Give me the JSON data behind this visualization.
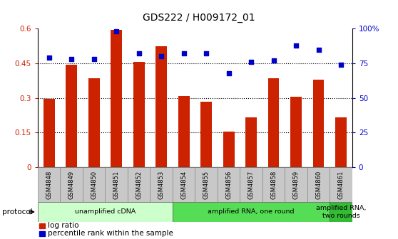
{
  "title": "GDS222 / H009172_01",
  "categories": [
    "GSM4848",
    "GSM4849",
    "GSM4850",
    "GSM4851",
    "GSM4852",
    "GSM4853",
    "GSM4854",
    "GSM4855",
    "GSM4856",
    "GSM4857",
    "GSM4858",
    "GSM4859",
    "GSM4860",
    "GSM4861"
  ],
  "log_ratio": [
    0.295,
    0.445,
    0.385,
    0.595,
    0.455,
    0.525,
    0.31,
    0.285,
    0.155,
    0.215,
    0.385,
    0.305,
    0.38,
    0.215
  ],
  "percentile": [
    79,
    78,
    78,
    98,
    82,
    80,
    82,
    82,
    68,
    76,
    77,
    88,
    85,
    74
  ],
  "bar_color": "#cc2200",
  "dot_color": "#0000cc",
  "bg_xlabel": "#c8c8c8",
  "protocol_groups": [
    {
      "label": "unamplified cDNA",
      "start": 0,
      "end": 5,
      "color": "#ccffcc"
    },
    {
      "label": "amplified RNA, one round",
      "start": 6,
      "end": 12,
      "color": "#55dd55"
    },
    {
      "label": "amplified RNA,\ntwo rounds",
      "start": 13,
      "end": 13,
      "color": "#33bb33"
    }
  ],
  "ylim_left": [
    0,
    0.6
  ],
  "ylim_right": [
    0,
    100
  ],
  "yticks_left": [
    0,
    0.15,
    0.3,
    0.45,
    0.6
  ],
  "ytick_labels_left": [
    "0",
    "0.15",
    "0.3",
    "0.45",
    "0.6"
  ],
  "yticks_right": [
    0,
    25,
    50,
    75,
    100
  ],
  "ytick_labels_right": [
    "0",
    "25",
    "50",
    "75",
    "100%"
  ],
  "legend_log_ratio": "log ratio",
  "legend_percentile": "percentile rank within the sample",
  "protocol_label": "protocol",
  "hgrid_vals": [
    0.15,
    0.3,
    0.45
  ]
}
